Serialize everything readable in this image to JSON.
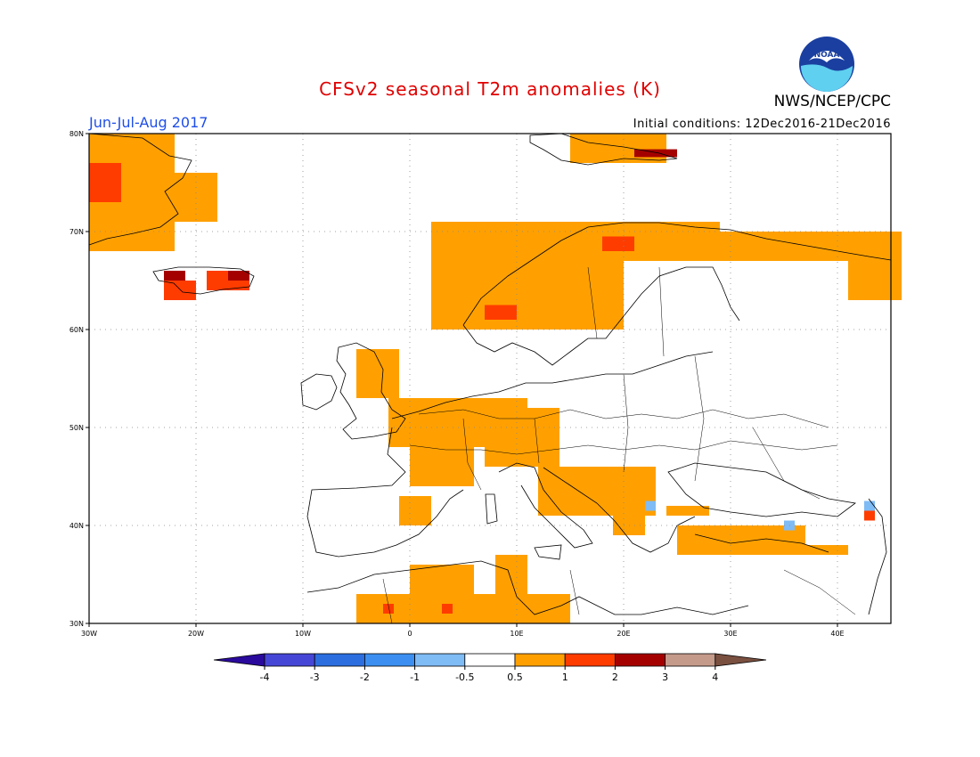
{
  "title": "CFSv2 seasonal T2m anomalies (K)",
  "season": "Jun-Jul-Aug 2017",
  "initial_conditions": "Initial conditions: 12Dec2016-21Dec2016",
  "agency": "NWS/NCEP/CPC",
  "logo_text": "NOAA",
  "map": {
    "lon_range": [
      -30,
      45
    ],
    "lat_range": [
      30,
      80
    ],
    "lon_ticks": [
      {
        "lon": -30,
        "label": "30W"
      },
      {
        "lon": -20,
        "label": "20W"
      },
      {
        "lon": -10,
        "label": "10W"
      },
      {
        "lon": 0,
        "label": "0"
      },
      {
        "lon": 10,
        "label": "10E"
      },
      {
        "lon": 20,
        "label": "20E"
      },
      {
        "lon": 30,
        "label": "30E"
      },
      {
        "lon": 40,
        "label": "40E"
      }
    ],
    "lat_ticks": [
      {
        "lat": 30,
        "label": "30N"
      },
      {
        "lat": 40,
        "label": "40N"
      },
      {
        "lat": 50,
        "label": "50N"
      },
      {
        "lat": 60,
        "label": "60N"
      },
      {
        "lat": 70,
        "label": "70N"
      },
      {
        "lat": 80,
        "label": "80N"
      }
    ],
    "grid": "dotted"
  },
  "colorbar": {
    "labels": [
      "-4",
      "-3",
      "-2",
      "-1",
      "-0.5",
      "0.5",
      "1",
      "2",
      "3",
      "4"
    ],
    "colors": [
      "#2a0a9c",
      "#4646d6",
      "#2c6ee0",
      "#3c8ff0",
      "#7fbbf5",
      "#ffffff",
      "#ffa000",
      "#ff3c00",
      "#a50000",
      "#c49a8a",
      "#7a5040"
    ]
  },
  "anomaly_regions": [
    {
      "category": "1",
      "lon": [
        -30,
        -22
      ],
      "lat": [
        68,
        80
      ]
    },
    {
      "category": "1",
      "lon": [
        -24,
        -18
      ],
      "lat": [
        71,
        76
      ]
    },
    {
      "category": "2",
      "lon": [
        -30,
        -27
      ],
      "lat": [
        73,
        77
      ]
    },
    {
      "category": "2",
      "lon": [
        -19,
        -15
      ],
      "lat": [
        64,
        66
      ]
    },
    {
      "category": "2",
      "lon": [
        -23,
        -20
      ],
      "lat": [
        63,
        65
      ]
    },
    {
      "category": "3",
      "lon": [
        -23,
        -21
      ],
      "lat": [
        65,
        66
      ]
    },
    {
      "category": "3",
      "lon": [
        -17,
        -15
      ],
      "lat": [
        65,
        66
      ]
    },
    {
      "category": "1",
      "lon": [
        2,
        20
      ],
      "lat": [
        60,
        71
      ]
    },
    {
      "category": "1",
      "lon": [
        15,
        29
      ],
      "lat": [
        67,
        71
      ]
    },
    {
      "category": "1",
      "lon": [
        29,
        46
      ],
      "lat": [
        67,
        70
      ]
    },
    {
      "category": "1",
      "lon": [
        41,
        46
      ],
      "lat": [
        63,
        67
      ]
    },
    {
      "category": "1",
      "lon": [
        15,
        24
      ],
      "lat": [
        77,
        80
      ]
    },
    {
      "category": "3",
      "lon": [
        21,
        25
      ],
      "lat": [
        77.6,
        78.4
      ]
    },
    {
      "category": "2",
      "lon": [
        18,
        21
      ],
      "lat": [
        68,
        69.5
      ]
    },
    {
      "category": "2",
      "lon": [
        7,
        10
      ],
      "lat": [
        61,
        62.5
      ]
    },
    {
      "category": "1",
      "lon": [
        -5,
        -1
      ],
      "lat": [
        53,
        58
      ]
    },
    {
      "category": "1",
      "lon": [
        -2,
        11
      ],
      "lat": [
        48,
        53
      ]
    },
    {
      "category": "1",
      "lon": [
        7,
        14
      ],
      "lat": [
        46,
        52
      ]
    },
    {
      "category": "1",
      "lon": [
        0,
        6
      ],
      "lat": [
        44,
        49
      ]
    },
    {
      "category": "1",
      "lon": [
        12,
        23
      ],
      "lat": [
        41,
        46
      ]
    },
    {
      "category": "1",
      "lon": [
        19,
        22
      ],
      "lat": [
        39,
        41
      ]
    },
    {
      "category": "1",
      "lon": [
        -1,
        2
      ],
      "lat": [
        40,
        43
      ]
    },
    {
      "category": "1",
      "lon": [
        25,
        37
      ],
      "lat": [
        37,
        40
      ]
    },
    {
      "category": "1",
      "lon": [
        37,
        41
      ],
      "lat": [
        37,
        38
      ]
    },
    {
      "category": "1",
      "lon": [
        24,
        28
      ],
      "lat": [
        41,
        42
      ]
    },
    {
      "category": "1",
      "lon": [
        -5,
        15
      ],
      "lat": [
        30,
        33
      ]
    },
    {
      "category": "1",
      "lon": [
        0,
        6
      ],
      "lat": [
        33,
        36
      ]
    },
    {
      "category": "1",
      "lon": [
        8,
        11
      ],
      "lat": [
        32,
        37
      ]
    },
    {
      "category": "2",
      "lon": [
        -2.5,
        -1.5
      ],
      "lat": [
        31,
        32
      ]
    },
    {
      "category": "2",
      "lon": [
        3,
        4
      ],
      "lat": [
        31,
        32
      ]
    },
    {
      "category": "2",
      "lon": [
        42.5,
        43.5
      ],
      "lat": [
        40.5,
        41.5
      ]
    },
    {
      "category": "-0.5",
      "lon": [
        42.5,
        43.5
      ],
      "lat": [
        41.5,
        42.5
      ]
    },
    {
      "category": "-0.5",
      "lon": [
        35,
        36
      ],
      "lat": [
        39.5,
        40.5
      ]
    },
    {
      "category": "-0.5",
      "lon": [
        22,
        23
      ],
      "lat": [
        41.5,
        42.5
      ]
    }
  ]
}
